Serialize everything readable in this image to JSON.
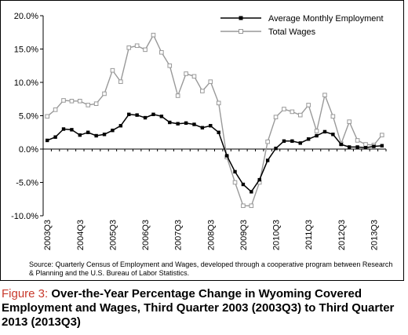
{
  "chart_data": {
    "type": "line",
    "title": "",
    "xlabel": "",
    "ylabel": "",
    "ylim": [
      -10,
      20
    ],
    "y_ticks": [
      "20.0%",
      "15.0%",
      "10.0%",
      "5.0%",
      "0.0%",
      "-5.0%",
      "-10.0%"
    ],
    "x_tick_labels": [
      "2003Q3",
      "2004Q3",
      "2005Q3",
      "2006Q3",
      "2007Q3",
      "2008Q3",
      "2009Q3",
      "2010Q3",
      "2011Q3",
      "2012Q3",
      "2013Q3"
    ],
    "grid": false,
    "legend_position": "top-right",
    "series": [
      {
        "name": "Average Monthly Employment",
        "color": "#000000",
        "marker": "square",
        "values": [
          1.3,
          1.8,
          3.0,
          2.9,
          2.1,
          2.5,
          2.0,
          2.2,
          2.8,
          3.5,
          5.2,
          5.1,
          4.7,
          5.2,
          4.9,
          4.0,
          3.8,
          3.9,
          3.7,
          3.2,
          3.5,
          2.5,
          -1.0,
          -3.4,
          -5.3,
          -6.4,
          -4.6,
          -1.7,
          0.1,
          1.2,
          1.2,
          0.9,
          1.5,
          2.0,
          2.6,
          2.2,
          0.7,
          0.3,
          0.3,
          0.2,
          0.4,
          0.5
        ]
      },
      {
        "name": "Total Wages",
        "color": "#999999",
        "marker": "square",
        "values": [
          4.9,
          5.9,
          7.3,
          7.2,
          7.2,
          6.6,
          6.8,
          8.3,
          11.8,
          10.1,
          15.2,
          15.5,
          14.9,
          17.1,
          14.5,
          12.5,
          8.0,
          11.3,
          10.9,
          8.7,
          10.1,
          6.9,
          -1.2,
          -5.0,
          -8.5,
          -8.5,
          -5.0,
          1.1,
          4.8,
          6.0,
          5.6,
          5.1,
          6.6,
          2.7,
          8.1,
          4.9,
          0.8,
          4.1,
          1.3,
          0.7,
          0.6,
          2.1
        ]
      }
    ]
  },
  "source_note": "Source: Quarterly Census of Employment and Wages, developed through a cooperative program between Research & Planning and the U.S. Bureau of Labor Statistics.",
  "caption": {
    "label": "Figure 3: ",
    "text": "Over-the-Year Percentage Change in Wyoming Covered Employment and Wages, Third Quarter 2003 (2003Q3) to Third Quarter 2013 (2013Q3)"
  }
}
